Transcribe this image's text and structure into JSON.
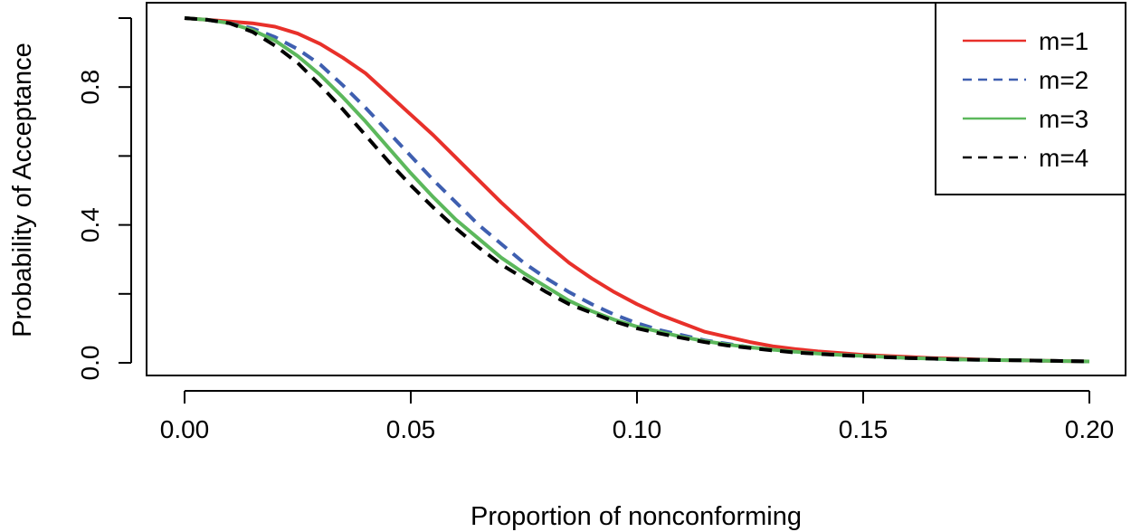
{
  "chart_data": {
    "type": "line",
    "title": "",
    "xlabel": "Proportion of nonconforming",
    "ylabel": "Probability of Acceptance",
    "xlim": [
      -0.008,
      0.208
    ],
    "ylim": [
      -0.02,
      1.0
    ],
    "xticks": [
      0.0,
      0.05,
      0.1,
      0.15,
      0.2
    ],
    "xtick_labels": [
      "0.00",
      "0.05",
      "0.10",
      "0.15",
      "0.20"
    ],
    "yticks": [
      0.0,
      0.2,
      0.4,
      0.6,
      0.8,
      1.0
    ],
    "ytick_labels": [
      "0.0",
      "",
      "0.4",
      "",
      "0.8",
      ""
    ],
    "grid": false,
    "legend_position": "top-right",
    "x": [
      0.0,
      0.005,
      0.01,
      0.015,
      0.02,
      0.025,
      0.03,
      0.035,
      0.04,
      0.045,
      0.05,
      0.055,
      0.06,
      0.065,
      0.07,
      0.075,
      0.08,
      0.085,
      0.09,
      0.095,
      0.1,
      0.105,
      0.11,
      0.115,
      0.12,
      0.125,
      0.13,
      0.135,
      0.14,
      0.145,
      0.15,
      0.155,
      0.16,
      0.165,
      0.17,
      0.175,
      0.18,
      0.185,
      0.19,
      0.195,
      0.2
    ],
    "series": [
      {
        "name": "m=1",
        "color": "#e8302a",
        "dash": "solid",
        "values": [
          1.0,
          0.995,
          0.99,
          0.985,
          0.975,
          0.955,
          0.925,
          0.885,
          0.84,
          0.78,
          0.72,
          0.66,
          0.595,
          0.53,
          0.465,
          0.405,
          0.345,
          0.29,
          0.245,
          0.205,
          0.17,
          0.14,
          0.115,
          0.09,
          0.075,
          0.06,
          0.048,
          0.04,
          0.033,
          0.028,
          0.023,
          0.02,
          0.017,
          0.014,
          0.012,
          0.01,
          0.008,
          0.007,
          0.006,
          0.005,
          0.004
        ]
      },
      {
        "name": "m=2",
        "color": "#3f5fb0",
        "dash": "dashed",
        "values": [
          1.0,
          0.995,
          0.985,
          0.97,
          0.945,
          0.91,
          0.865,
          0.805,
          0.74,
          0.67,
          0.6,
          0.53,
          0.465,
          0.4,
          0.345,
          0.29,
          0.245,
          0.205,
          0.17,
          0.14,
          0.115,
          0.095,
          0.08,
          0.065,
          0.055,
          0.045,
          0.038,
          0.032,
          0.027,
          0.023,
          0.02,
          0.017,
          0.014,
          0.012,
          0.01,
          0.009,
          0.008,
          0.007,
          0.006,
          0.005,
          0.004
        ]
      },
      {
        "name": "m=3",
        "color": "#5cb85c",
        "dash": "solid",
        "values": [
          1.0,
          0.995,
          0.985,
          0.965,
          0.935,
          0.89,
          0.835,
          0.77,
          0.7,
          0.625,
          0.55,
          0.48,
          0.415,
          0.36,
          0.305,
          0.26,
          0.22,
          0.18,
          0.15,
          0.125,
          0.105,
          0.09,
          0.075,
          0.063,
          0.053,
          0.045,
          0.038,
          0.032,
          0.027,
          0.023,
          0.02,
          0.017,
          0.014,
          0.012,
          0.01,
          0.009,
          0.008,
          0.007,
          0.006,
          0.005,
          0.004
        ]
      },
      {
        "name": "m=4",
        "color": "#000000",
        "dash": "dashed",
        "values": [
          1.0,
          0.995,
          0.985,
          0.96,
          0.92,
          0.87,
          0.805,
          0.735,
          0.66,
          0.585,
          0.515,
          0.45,
          0.39,
          0.335,
          0.285,
          0.245,
          0.205,
          0.17,
          0.145,
          0.12,
          0.1,
          0.085,
          0.072,
          0.06,
          0.05,
          0.043,
          0.036,
          0.03,
          0.026,
          0.022,
          0.019,
          0.016,
          0.014,
          0.012,
          0.01,
          0.009,
          0.008,
          0.007,
          0.006,
          0.005,
          0.004
        ]
      }
    ]
  }
}
